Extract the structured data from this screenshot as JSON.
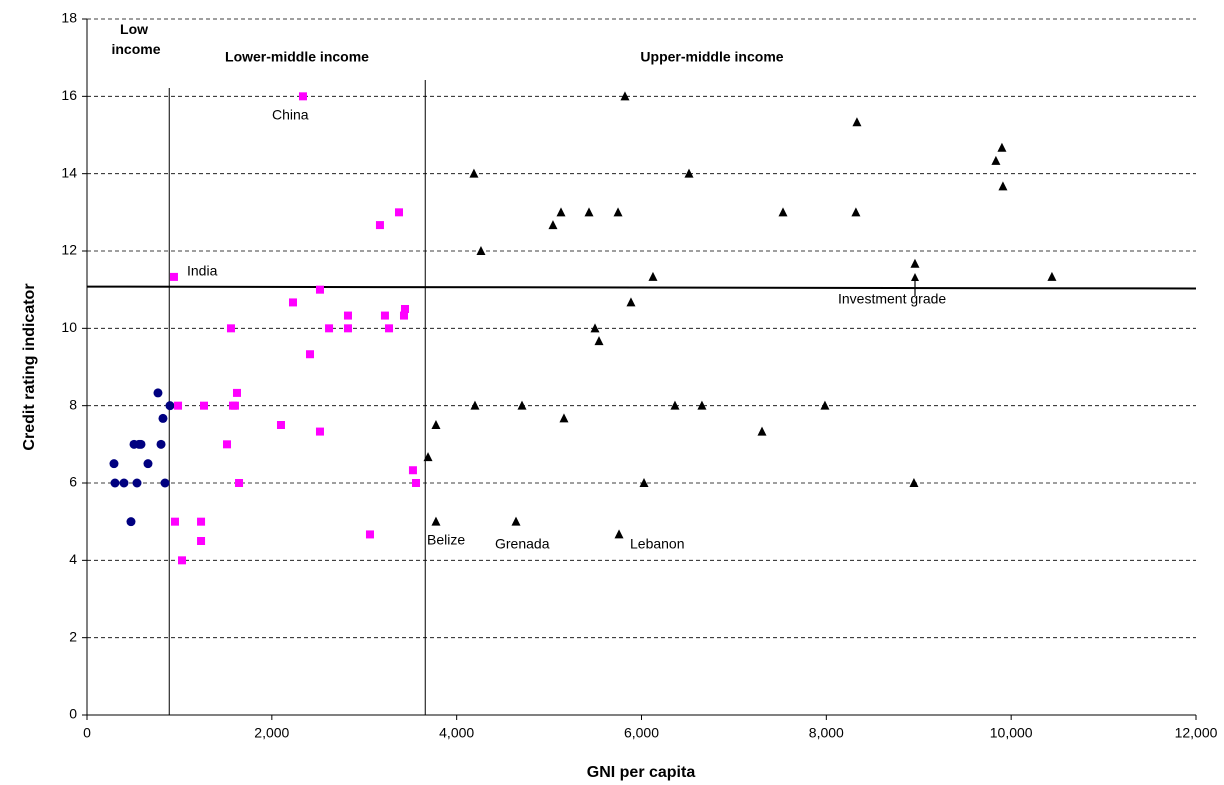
{
  "chart_data": {
    "type": "scatter",
    "xlabel": "GNI per capita",
    "ylabel": "Credit rating indicator",
    "xlim": [
      0,
      12000
    ],
    "ylim": [
      0,
      18
    ],
    "xticks": [
      0,
      {
        "value": 2000,
        "label": "2,000"
      },
      {
        "value": 4000,
        "label": "4,000"
      },
      {
        "value": 6000,
        "label": "6,000"
      },
      {
        "value": 8000,
        "label": "8,000"
      },
      {
        "value": 10000,
        "label": "10,000"
      },
      {
        "value": 12000,
        "label": "12,000"
      }
    ],
    "yticks": [
      0,
      2,
      4,
      6,
      8,
      10,
      12,
      14,
      16,
      18
    ],
    "grid": true,
    "series": [
      {
        "name": "Low income",
        "color": "#000080",
        "marker": "circle",
        "x": [
          292,
          303,
          400,
          476,
          509,
          563,
          541,
          584,
          660,
          768,
          801,
          822,
          844,
          898
        ],
        "values": [
          6.5,
          6,
          6,
          5,
          7,
          7,
          6,
          7,
          6.5,
          8.33,
          7,
          7.67,
          6,
          8
        ]
      },
      {
        "name": "Lower-middle income",
        "color": "#ff00ff",
        "marker": "square",
        "x": [
          2337,
          941,
          952,
          985,
          1028,
          1266,
          1234,
          1234,
          1515,
          1558,
          1580,
          1601,
          1623,
          1645,
          2099,
          2229,
          2413,
          2521,
          2521,
          2619,
          2824,
          2824,
          3062,
          3170,
          3224,
          3268,
          3376,
          3430,
          3441,
          3527,
          3560
        ],
        "values": [
          16,
          11.33,
          5,
          8,
          4,
          8,
          5,
          4.5,
          7,
          10,
          8,
          8,
          8.33,
          6,
          7.5,
          10.67,
          9.33,
          11,
          7.33,
          10,
          10.33,
          10,
          4.67,
          12.67,
          10.33,
          10,
          13,
          10.33,
          10.5,
          6.33,
          6
        ]
      },
      {
        "name": "Upper-middle income",
        "color": "#000000",
        "marker": "triangle",
        "x": [
          3690,
          3776,
          3776,
          4187,
          4198,
          4263,
          4642,
          4707,
          5042,
          5129,
          5161,
          5497,
          5540,
          5432,
          5746,
          5757,
          5821,
          5886,
          6027,
          6124,
          6362,
          6514,
          6654,
          7304,
          7531,
          7985,
          8320,
          8331,
          8948,
          8959,
          9900,
          9835,
          9911,
          10441
        ],
        "values": [
          6.67,
          7.5,
          5,
          14,
          8,
          12,
          5,
          8,
          12.67,
          13,
          7.67,
          10,
          9.67,
          13,
          13,
          4.67,
          16,
          10.67,
          6,
          11.33,
          8,
          14,
          8,
          7.33,
          13,
          8,
          13,
          15.33,
          6,
          11.67,
          14.67,
          14.33,
          13.67,
          11.33
        ]
      }
    ],
    "income_thresholds": [
      890,
      3660
    ],
    "investment_grade_line": [
      11.08,
      11.03
    ],
    "annotations": [
      "China",
      "India",
      "Belize",
      "Grenada",
      "Lebanon",
      "Investment grade"
    ]
  }
}
